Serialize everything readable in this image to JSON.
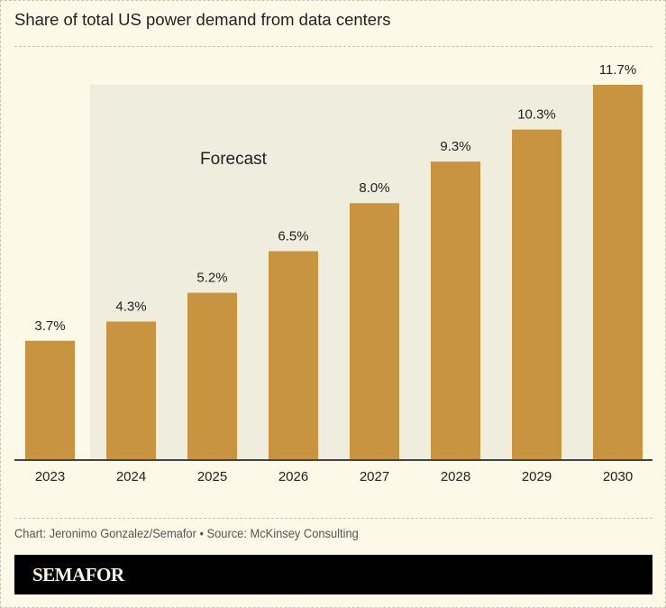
{
  "chart_data": {
    "type": "bar",
    "title": "Share of total US power demand from data centers",
    "categories": [
      "2023",
      "2024",
      "2025",
      "2026",
      "2027",
      "2028",
      "2029",
      "2030"
    ],
    "values": [
      3.7,
      4.3,
      5.2,
      6.5,
      8.0,
      9.3,
      10.3,
      11.7
    ],
    "data_labels": [
      "3.7%",
      "4.3%",
      "5.2%",
      "6.5%",
      "8.0%",
      "9.3%",
      "10.3%",
      "11.7%"
    ],
    "unit": "%",
    "ylim": [
      0,
      11.7
    ],
    "grid": false,
    "annotation": {
      "label": "Forecast",
      "range": [
        "2024",
        "2030"
      ],
      "color": "#efedde"
    },
    "colors": {
      "bar": "#c9943f",
      "background": "#fcf9e8",
      "forecast_shade": "#efedde"
    }
  },
  "credit": "Chart: Jeronimo Gonzalez/Semafor • Source: McKinsey Consulting",
  "brand": "SEMAFOR"
}
